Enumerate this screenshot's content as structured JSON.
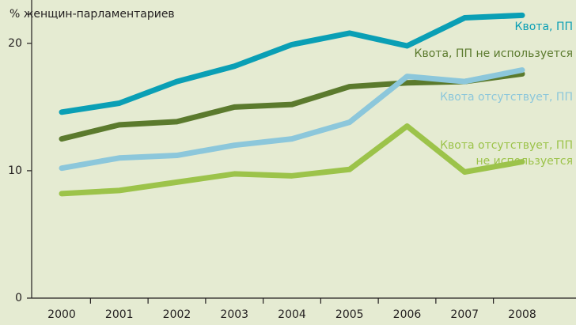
{
  "chart_data": {
    "type": "line",
    "y_label": "% женщин-парламентариев",
    "categories": [
      "2000",
      "2001",
      "2002",
      "2003",
      "2004",
      "2005",
      "2006",
      "2007",
      "2008"
    ],
    "series": [
      {
        "name": "Квота, ПП",
        "color": "#0a9fb5",
        "values": [
          14.6,
          15.3,
          17.0,
          18.2,
          19.9,
          20.8,
          19.8,
          22.0,
          22.2
        ]
      },
      {
        "name": "Квота, ПП не используется",
        "color": "#5b7a2d",
        "values": [
          12.5,
          13.6,
          13.85,
          15.0,
          15.2,
          16.6,
          16.9,
          17.0,
          17.6
        ]
      },
      {
        "name": "Квота отсутствует, ПП",
        "color": "#8cc7db",
        "values": [
          10.2,
          11.0,
          11.2,
          12.0,
          12.5,
          13.8,
          17.4,
          17.0,
          17.9
        ]
      },
      {
        "name": "Квота отсутствует, ПП не используется",
        "color": "#9cc34a",
        "values": [
          8.2,
          8.45,
          9.1,
          9.75,
          9.6,
          10.1,
          13.5,
          9.9,
          10.7
        ]
      }
    ],
    "ylim": [
      0,
      23.4
    ],
    "yticks": [
      0,
      10,
      20
    ]
  }
}
